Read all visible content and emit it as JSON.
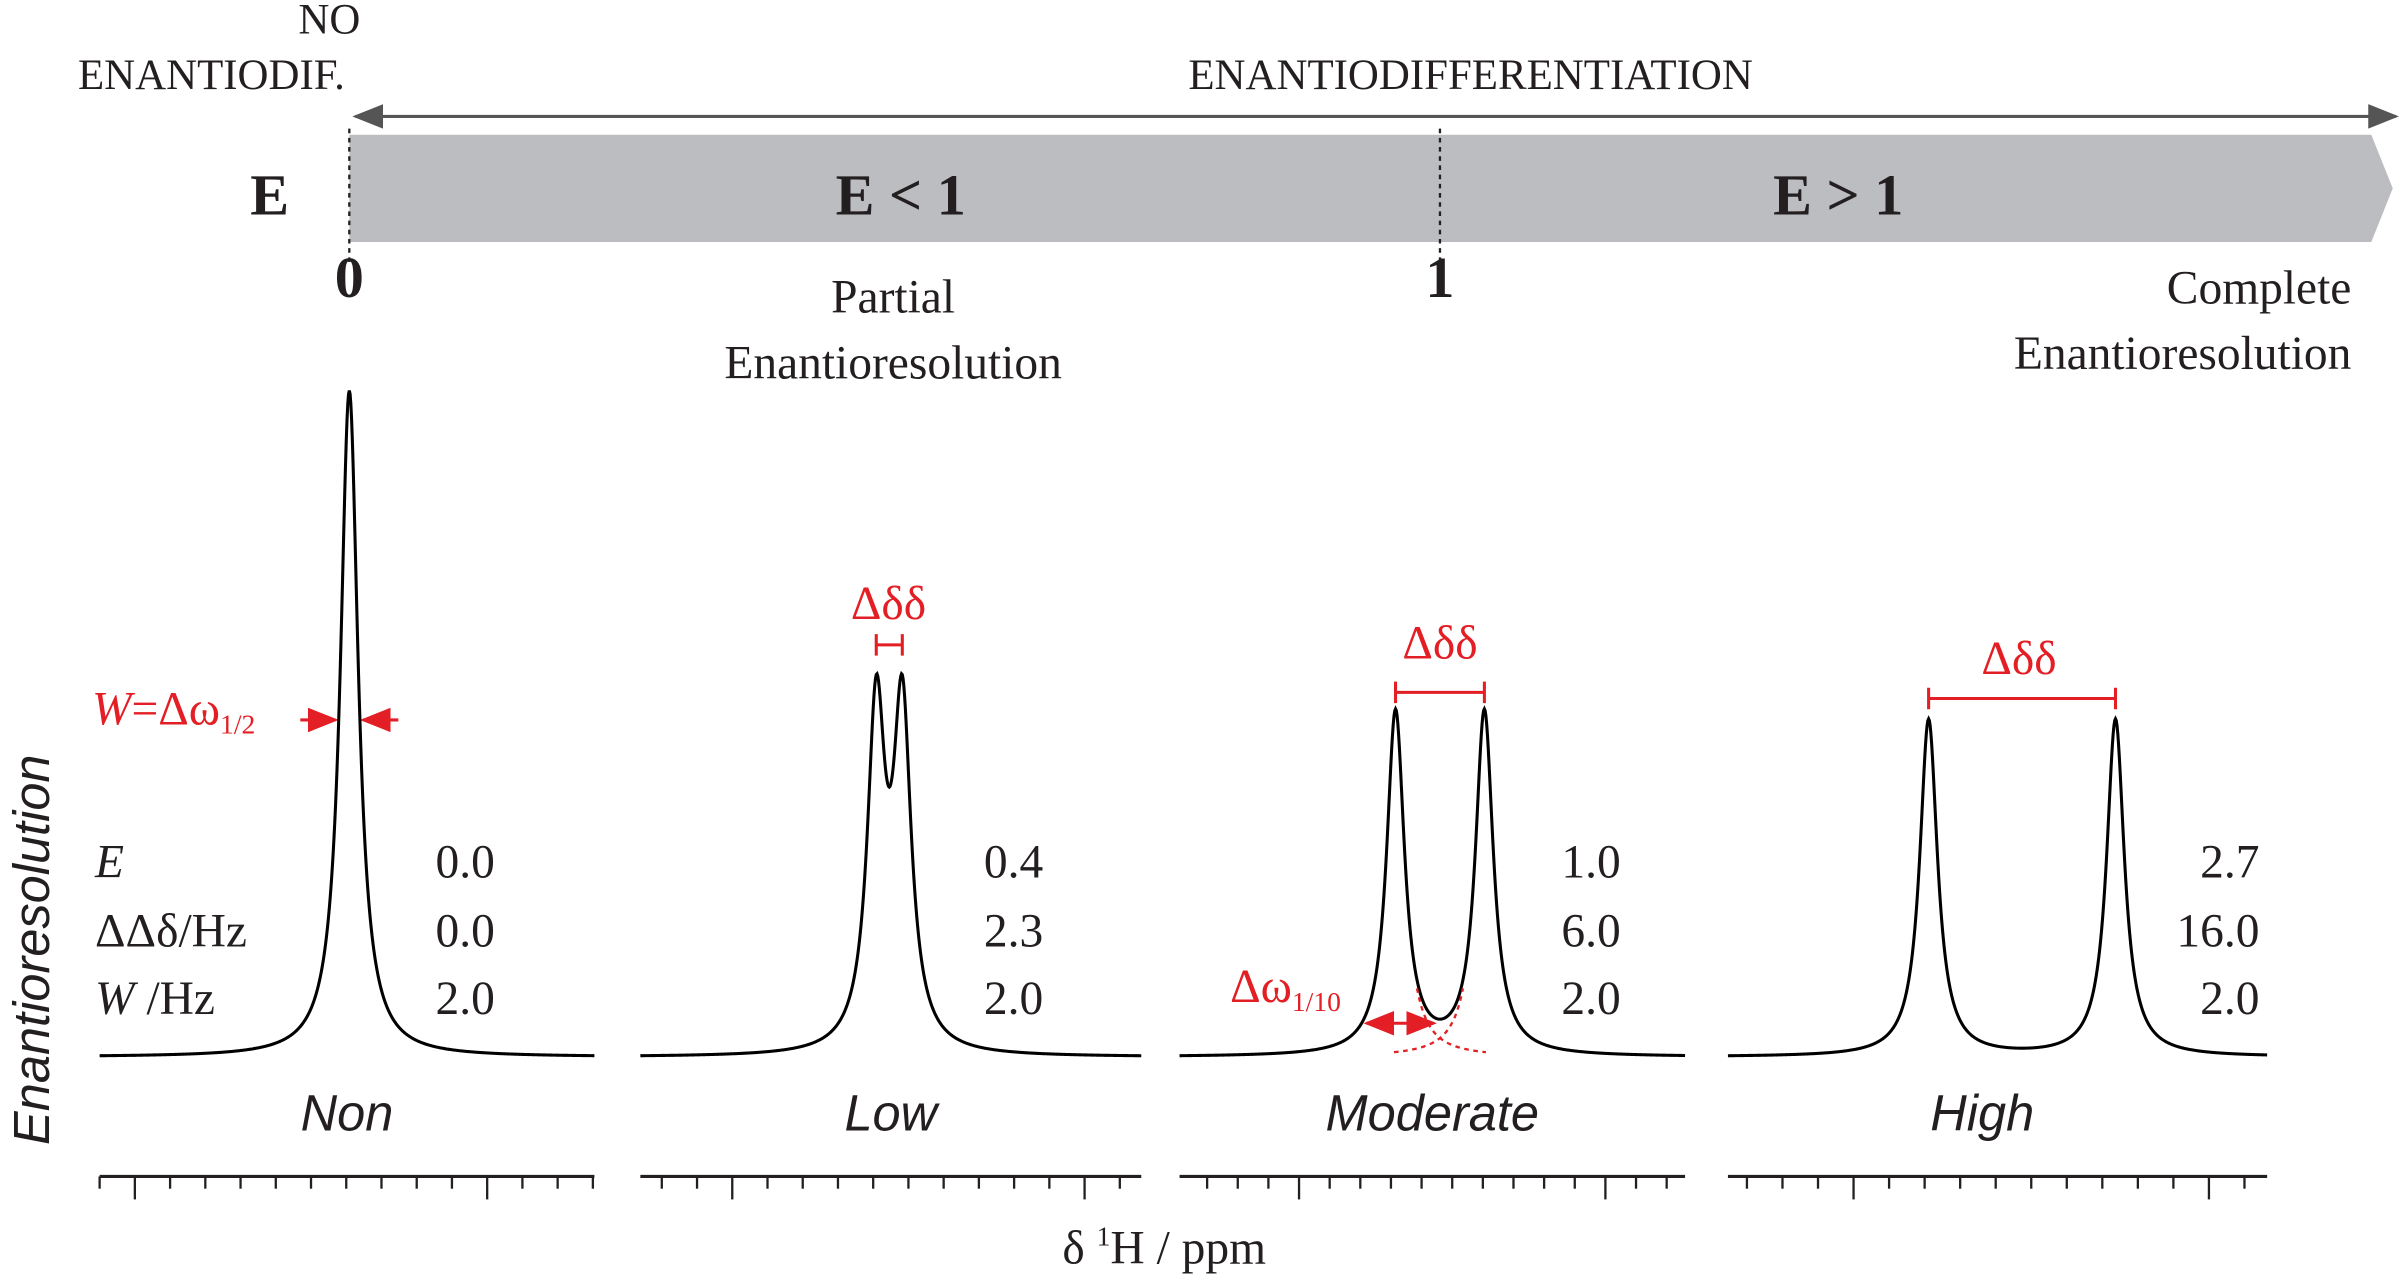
{
  "header": {
    "no_enantiodif": [
      "NO",
      "ENANTIODIF."
    ],
    "enantiodifferentiation": "ENANTIODIFFERENTIATION",
    "e_symbol": "E",
    "e_less": "E < 1",
    "e_greater": "E > 1",
    "tick_zero": "0",
    "tick_one": "1",
    "partial": [
      "Partial",
      "Enantioresolution"
    ],
    "complete": [
      "Complete",
      "Enantioresolution"
    ]
  },
  "y_axis_label": "Enantioresolution",
  "row_labels": [
    {
      "italic": "E"
    },
    {
      "text": "ΔΔδ/Hz"
    },
    {
      "italic": "W",
      "text": " /Hz"
    }
  ],
  "panels": [
    {
      "name": "Non",
      "values": [
        "0.0",
        "0.0",
        "2.0"
      ]
    },
    {
      "name": "Low",
      "values": [
        "0.4",
        "2.3",
        "2.0"
      ]
    },
    {
      "name": "Moderate",
      "values": [
        "1.0",
        "6.0",
        "2.0"
      ]
    },
    {
      "name": "High",
      "values": [
        "2.7",
        "16.0",
        "2.0"
      ]
    }
  ],
  "annotations": {
    "w_label": {
      "italic": "W",
      "text": "=Δω",
      "sub": "1/2"
    },
    "dd_labels": [
      "Δδδ",
      "Δδδ",
      "Δδδ"
    ],
    "w10_label": {
      "text": "Δω",
      "sub": "1/10"
    }
  },
  "x_axis_label": {
    "text": "δ ",
    "sup": "1",
    "rest": "H / ppm"
  }
}
